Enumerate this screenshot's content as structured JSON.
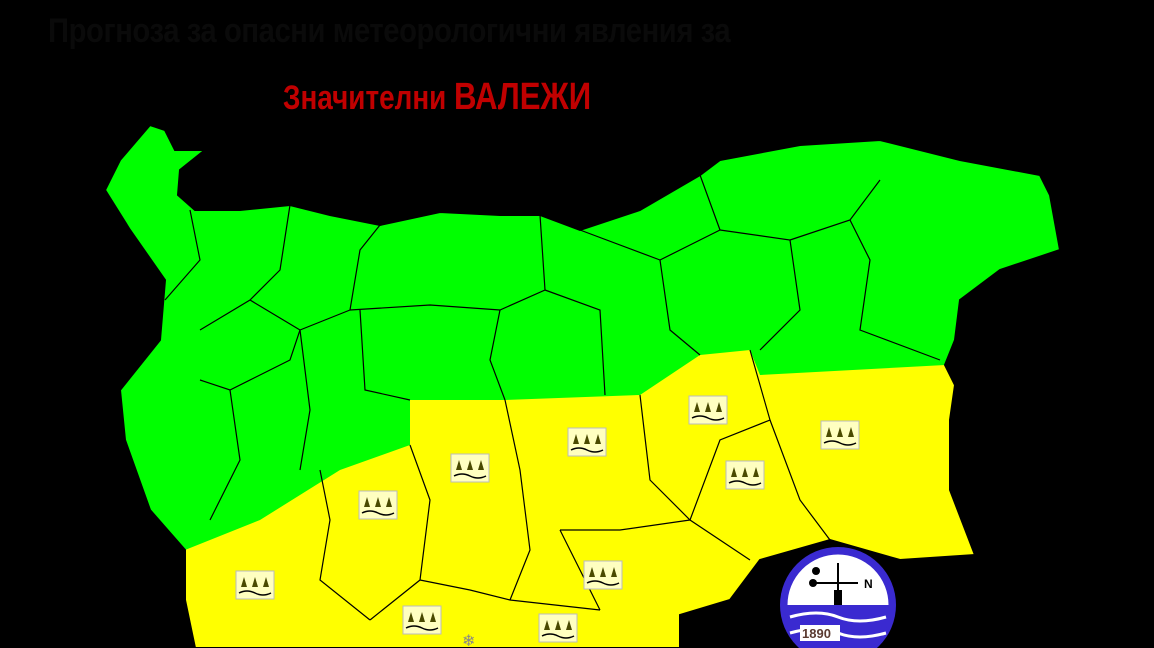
{
  "title": "Прогноза за опасни метеорологични явления за",
  "subtitle": {
    "prefix": "Значителни",
    "phenomenon": "ВАЛЕЖИ"
  },
  "legend_colors": {
    "no_warning": "#00ff00",
    "yellow_warning": "#ffff00"
  },
  "warning_icons": {
    "rain": "rain-icon",
    "snow": "snowflake-icon"
  },
  "logo": {
    "year": "1890",
    "compass_letter": "N"
  }
}
